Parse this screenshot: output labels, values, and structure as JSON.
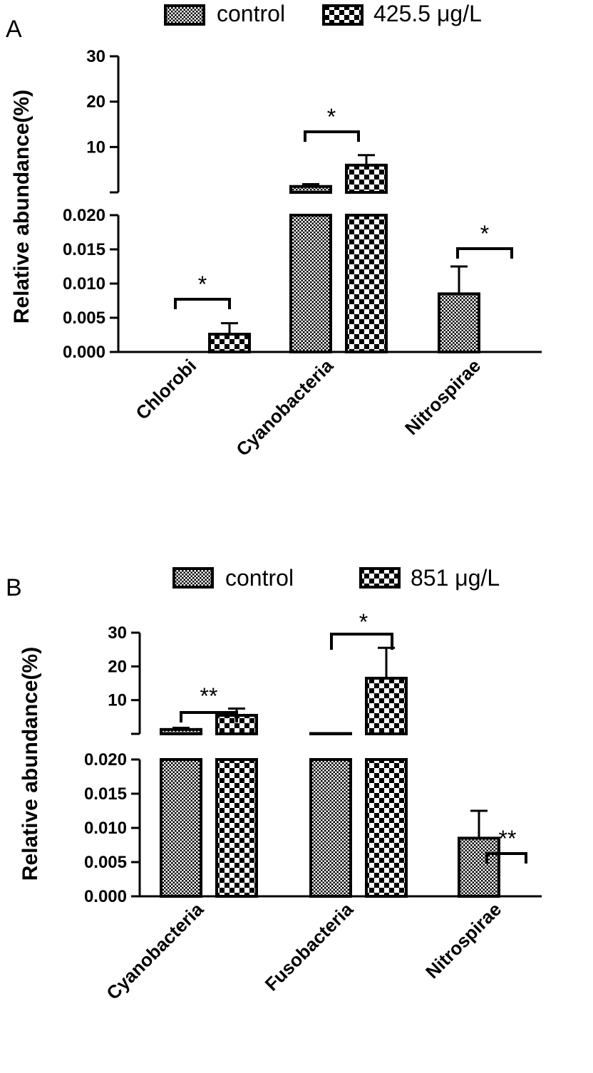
{
  "chart_data": [
    {
      "panel": "A",
      "type": "bar",
      "ylabel": "Relative abundance(%)",
      "categories": [
        "Chlorobi",
        "Cyanobacteria",
        "Nitrospirae"
      ],
      "series": [
        {
          "name": "control",
          "values": [
            0,
            1.3,
            0.0085
          ],
          "errors": [
            0,
            0.5,
            0.004
          ]
        },
        {
          "name": "425.5 μg/L",
          "values": [
            0.0026,
            6.0,
            0
          ],
          "errors": [
            0.0016,
            2.2,
            0
          ]
        }
      ],
      "axis_break": true,
      "lower_ylim": [
        0,
        0.02
      ],
      "lower_ticks": [
        "0.000",
        "0.005",
        "0.010",
        "0.015",
        "0.020"
      ],
      "upper_ylim": [
        0,
        30
      ],
      "upper_ticks": [
        "10",
        "20",
        "30"
      ],
      "significance": [
        "*",
        "*",
        "*"
      ]
    },
    {
      "panel": "B",
      "type": "bar",
      "ylabel": "Relative abundance(%)",
      "categories": [
        "Cyanobacteria",
        "Fusobacteria",
        "Nitrospirae"
      ],
      "series": [
        {
          "name": "control",
          "values": [
            1.3,
            0.1,
            0.0085
          ],
          "errors": [
            0.5,
            0,
            0.004
          ]
        },
        {
          "name": "851 μg/L",
          "values": [
            5.5,
            16.5,
            0
          ],
          "errors": [
            2.0,
            9.0,
            0
          ]
        }
      ],
      "axis_break": true,
      "lower_ylim": [
        0,
        0.02
      ],
      "lower_ticks": [
        "0.000",
        "0.005",
        "0.010",
        "0.015",
        "0.020"
      ],
      "upper_ylim": [
        0,
        30
      ],
      "upper_ticks": [
        "10",
        "20",
        "30"
      ],
      "significance": [
        "**",
        "*",
        "**"
      ]
    }
  ]
}
